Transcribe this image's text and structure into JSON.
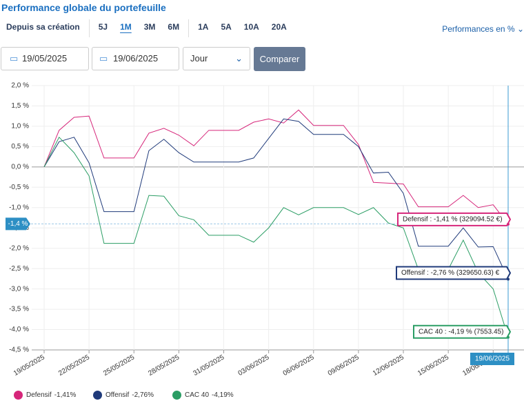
{
  "header": {
    "title": "Performance globale du portefeuille"
  },
  "tabs": {
    "items": [
      "Depuis sa création",
      "5J",
      "1M",
      "3M",
      "6M",
      "1A",
      "5A",
      "10A",
      "20A"
    ],
    "active": 2
  },
  "perf_select": "Performances en %",
  "filters": {
    "date_from": "19/05/2025",
    "date_to": "19/06/2025",
    "period": "Jour",
    "button": "Comparer"
  },
  "chart_data": {
    "type": "line",
    "categories": [
      "19/05/2025",
      null,
      null,
      "22/05/2025",
      null,
      null,
      "25/05/2025",
      null,
      null,
      "28/05/2025",
      null,
      null,
      "31/05/2025",
      null,
      null,
      "03/06/2025",
      null,
      null,
      "06/06/2025",
      null,
      null,
      "09/06/2025",
      null,
      null,
      "12/06/2025",
      null,
      null,
      "15/06/2025",
      null,
      null,
      "18/06/2025",
      null
    ],
    "series": [
      {
        "name": "Defensif",
        "color": "#d6267a",
        "values": [
          0,
          0.9,
          1.22,
          1.25,
          0.22,
          0.22,
          0.22,
          0.83,
          0.95,
          0.78,
          0.52,
          0.9,
          0.9,
          0.9,
          1.1,
          1.18,
          1.08,
          1.4,
          1.02,
          1.02,
          1.02,
          0.55,
          -0.38,
          -0.4,
          -0.42,
          -0.98,
          -0.98,
          -0.98,
          -0.7,
          -1.0,
          -0.93,
          -1.41
        ]
      },
      {
        "name": "Offensif",
        "color": "#1f3a7a",
        "values": [
          0,
          0.62,
          0.73,
          0.1,
          -1.1,
          -1.1,
          -1.1,
          0.4,
          0.68,
          0.35,
          0.12,
          0.12,
          0.12,
          0.12,
          0.22,
          0.7,
          1.18,
          1.12,
          0.8,
          0.8,
          0.8,
          0.5,
          -0.15,
          -0.13,
          -0.65,
          -1.95,
          -1.95,
          -1.95,
          -1.5,
          -1.97,
          -1.96,
          -2.76
        ]
      },
      {
        "name": "CAC 40",
        "color": "#2a9d64",
        "values": [
          0,
          0.73,
          0.35,
          -0.22,
          -1.88,
          -1.88,
          -1.88,
          -0.7,
          -0.72,
          -1.2,
          -1.3,
          -1.68,
          -1.68,
          -1.68,
          -1.85,
          -1.5,
          -1.0,
          -1.18,
          -1.0,
          -1.0,
          -1.0,
          -1.17,
          -1.0,
          -1.38,
          -1.5,
          -2.52,
          -2.52,
          -2.52,
          -1.8,
          -2.6,
          -3.0,
          -4.19
        ]
      }
    ],
    "legend_labels": [
      "-1,41%",
      "-2,76%",
      "-4,19%"
    ],
    "tooltips": [
      "Defensif : -1,41 % (329094.52 €)",
      "Offensif : -2,76 % (329650.63) €",
      "CAC 40 : -4,19 % (7553.45)"
    ],
    "cursor": {
      "y": {
        "value": -1.4,
        "label": "-1,4 %"
      },
      "x_label": "19/06/2025"
    },
    "ylim": [
      -4.5,
      2.0
    ],
    "yticks": [
      {
        "value": 2.0,
        "label": "2,0 %"
      },
      {
        "value": 1.5,
        "label": "1,5 %"
      },
      {
        "value": 1.0,
        "label": "1,0 %"
      },
      {
        "value": 0.5,
        "label": "0,5 %"
      },
      {
        "value": 0,
        "label": "0,0 %"
      },
      {
        "value": -0.5,
        "label": "-0,5 %"
      },
      {
        "value": -1.0,
        "label": "-1,0 %"
      },
      {
        "value": -1.5,
        "label": "-1,5 %"
      },
      {
        "value": -2.0,
        "label": "-2,0 %"
      },
      {
        "value": -2.5,
        "label": "-2,5 %"
      },
      {
        "value": -3.0,
        "label": "-3,0 %"
      },
      {
        "value": -3.5,
        "label": "-3,5 %"
      },
      {
        "value": -4.0,
        "label": "-4,0 %"
      },
      {
        "value": -4.5,
        "label": "-4,5 %"
      }
    ],
    "grid": true
  }
}
